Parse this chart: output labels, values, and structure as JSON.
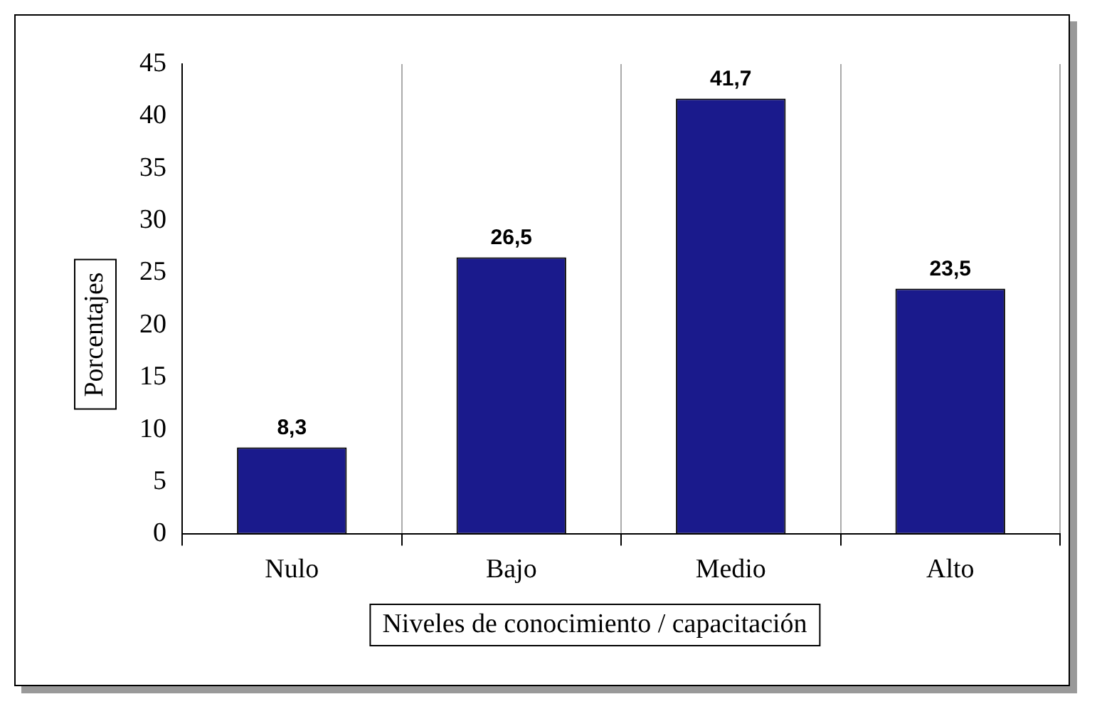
{
  "chart_data": {
    "type": "bar",
    "xlabel": "Niveles de conocimiento / capacitación",
    "ylabel": "Porcentajes",
    "categories": [
      "Nulo",
      "Bajo",
      "Medio",
      "Alto"
    ],
    "values": [
      8.3,
      26.5,
      41.7,
      23.5
    ],
    "color": "#1a1a8c",
    "value_labels": [
      "8,3",
      "26,5",
      "41,7",
      "23,5"
    ],
    "ylim": [
      0,
      45
    ],
    "yticks": [
      0,
      5,
      10,
      15,
      20,
      25,
      30,
      35,
      40,
      45
    ],
    "grid": "x",
    "legend": false
  }
}
